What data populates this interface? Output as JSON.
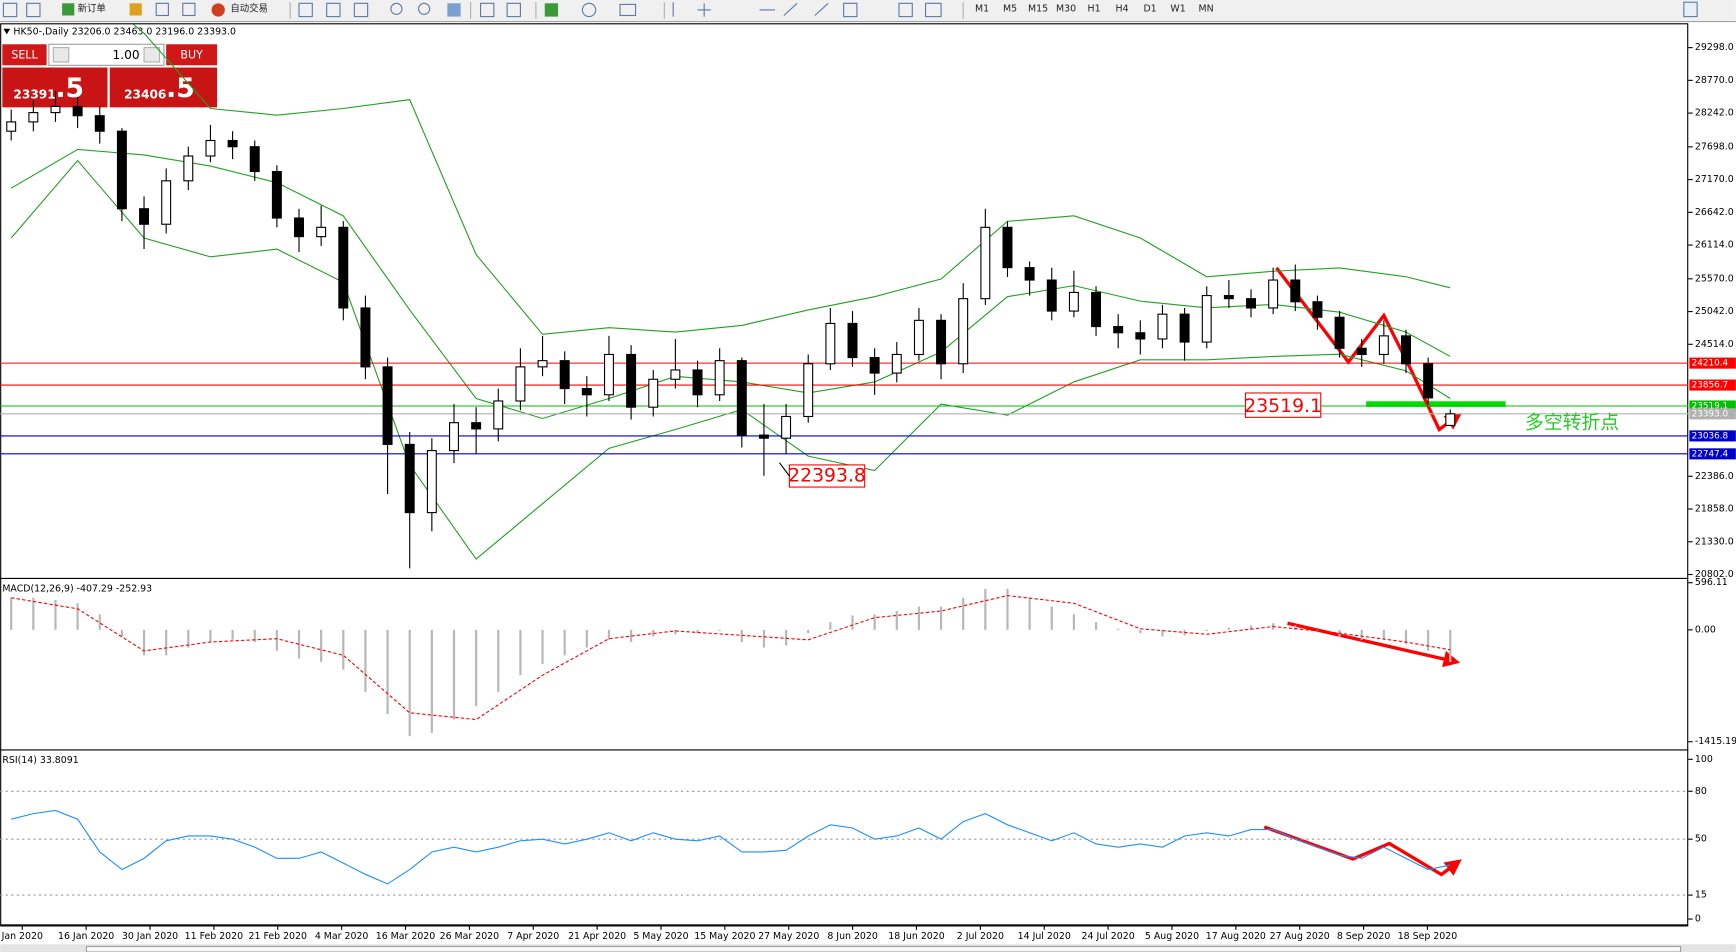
{
  "toolbar": {
    "new_order": "新订单",
    "auto_trading": "自动交易",
    "timeframes": [
      "M1",
      "M5",
      "M15",
      "M30",
      "H1",
      "H4",
      "D1",
      "W1",
      "MN"
    ]
  },
  "trade_panel": {
    "sell": "SELL",
    "buy": "BUY",
    "volume": "1.00",
    "bid_main": "23391",
    "bid_frac": ".5",
    "ask_main": "23406",
    "ask_frac": ".5"
  },
  "chart_data": [
    {
      "type": "candlestick",
      "title": "HK50-,Daily 23206.0 23463.0 23196.0 23393.0",
      "up_color": "#ffffff",
      "down_color": "#000000",
      "open": [
        27950,
        28100,
        28250,
        28350,
        28200,
        27950,
        26700,
        26450,
        27150,
        27550,
        27800,
        27700,
        27300,
        26550,
        26250,
        26400,
        25100,
        24150,
        22900,
        21800,
        22800,
        23250,
        23150,
        23600,
        24150,
        24250,
        23800,
        23700,
        24350,
        23500,
        23950,
        24100,
        23700,
        24250,
        23050,
        23000,
        23350,
        24200,
        24850,
        24300,
        24050,
        24350,
        24900,
        24200,
        25250,
        26400,
        25750,
        25550,
        25050,
        25350,
        24800,
        24700,
        24600,
        25000,
        24550,
        25300,
        25250,
        25100,
        25550,
        25200,
        24950,
        24450,
        24350,
        24650,
        24200,
        23206
      ],
      "high": [
        28300,
        28450,
        28600,
        28500,
        28350,
        28000,
        26900,
        27350,
        27700,
        28050,
        27950,
        27800,
        27400,
        26700,
        26750,
        26500,
        25300,
        24300,
        23100,
        23000,
        23550,
        23500,
        23800,
        24450,
        24650,
        24400,
        24000,
        24650,
        24500,
        24100,
        24600,
        24250,
        24450,
        24300,
        23550,
        23550,
        24350,
        25100,
        25050,
        24450,
        24550,
        25100,
        25000,
        25500,
        26700,
        26500,
        25850,
        25750,
        25700,
        25450,
        25000,
        24900,
        25150,
        25100,
        25450,
        25550,
        25400,
        25750,
        25800,
        25300,
        25050,
        24600,
        24900,
        24750,
        24300,
        23463
      ],
      "low": [
        27800,
        27950,
        28100,
        28000,
        27750,
        26500,
        26050,
        26300,
        27000,
        27450,
        27500,
        27150,
        26400,
        26000,
        26100,
        24900,
        23950,
        22100,
        20900,
        21500,
        22600,
        22750,
        22950,
        23450,
        24000,
        23550,
        23350,
        23600,
        23300,
        23350,
        23800,
        23500,
        23600,
        22850,
        22393.8,
        22750,
        23250,
        24100,
        24150,
        23700,
        23900,
        24250,
        23950,
        24050,
        25150,
        25600,
        25300,
        24900,
        24950,
        24650,
        24450,
        24350,
        24450,
        24250,
        24450,
        25100,
        24950,
        25000,
        25050,
        24750,
        24300,
        24150,
        24200,
        24050,
        23550,
        23196
      ],
      "close": [
        28100,
        28250,
        28350,
        28200,
        27950,
        26700,
        26450,
        27150,
        27550,
        27800,
        27700,
        27300,
        26550,
        26250,
        26400,
        25100,
        24150,
        22900,
        21800,
        22800,
        23250,
        23150,
        23600,
        24150,
        24250,
        23800,
        23700,
        24350,
        23500,
        23950,
        24100,
        23700,
        24250,
        23050,
        23000,
        23350,
        24200,
        24850,
        24300,
        24050,
        24350,
        24900,
        24200,
        25250,
        26400,
        25750,
        25550,
        25050,
        25350,
        24800,
        24700,
        24600,
        25000,
        24550,
        25300,
        25250,
        25100,
        25550,
        25200,
        24950,
        24450,
        24350,
        24650,
        24200,
        23650,
        23393
      ],
      "bands": {
        "color": "#22a022",
        "x": [
          0,
          3,
          6,
          9,
          12,
          15,
          18,
          21,
          24,
          27,
          30,
          33,
          36,
          39,
          42,
          45,
          48,
          51,
          54,
          57,
          60,
          63,
          65
        ],
        "upper": [
          30420,
          30420,
          29530,
          28316,
          28209,
          28316,
          28459,
          25960,
          24675,
          24782,
          24711,
          24818,
          25068,
          25282,
          25567,
          26496,
          26585,
          26228,
          25603,
          25692,
          25746,
          25603,
          25425
        ],
        "middle": [
          27031,
          27656,
          27567,
          27388,
          27120,
          26585,
          25068,
          23640,
          23318,
          23640,
          23997,
          23907,
          23729,
          23907,
          24389,
          25282,
          25460,
          25210,
          25103,
          25157,
          25032,
          24711,
          24318
        ],
        "lower": [
          26228,
          27477,
          26228,
          25924,
          26049,
          25514,
          22569,
          21051,
          21944,
          22836,
          23140,
          23461,
          22711,
          22479,
          23550,
          23372,
          23907,
          24264,
          24264,
          24318,
          24354,
          24086,
          23640
        ]
      },
      "ylim": [
        20766,
        29673
      ],
      "yticks": [
        {
          "value": 29298,
          "label": "29298.0"
        },
        {
          "value": 28770,
          "label": "28770.0"
        },
        {
          "value": 28242,
          "label": "28242.0"
        },
        {
          "value": 27698,
          "label": "27698.0"
        },
        {
          "value": 27170,
          "label": "27170.0"
        },
        {
          "value": 26642,
          "label": "26642.0"
        },
        {
          "value": 26114,
          "label": "26114.0"
        },
        {
          "value": 25570,
          "label": "25570.0"
        },
        {
          "value": 25042,
          "label": "25042.0"
        },
        {
          "value": 24514,
          "label": "24514.0"
        },
        {
          "value": 22386,
          "label": "22386.0"
        },
        {
          "value": 21858,
          "label": "21858.0"
        },
        {
          "value": 21330,
          "label": "21330.0"
        },
        {
          "value": 20802,
          "label": "20802.0"
        }
      ],
      "levels": [
        {
          "value": 24210.4,
          "color": "#ff0000"
        },
        {
          "value": 23856.7,
          "color": "#ff0000"
        },
        {
          "value": 23519.1,
          "color": "#00c000"
        },
        {
          "value": 23393,
          "label": "23393.0",
          "color": "#b0b0b0"
        },
        {
          "value": 23036.8,
          "color": "#0000cc"
        },
        {
          "value": 22747.4,
          "color": "#0000cc"
        }
      ],
      "annotations": [
        {
          "text": "23519.1",
          "color": "#ff0000"
        },
        {
          "text": "22393.8",
          "color": "#ff0000"
        },
        {
          "text": "多空转折点",
          "color": "#22cc22"
        }
      ],
      "x_labels": [
        "Jan 2020",
        "16 Jan 2020",
        "30 Jan 2020",
        "11 Feb 2020",
        "21 Feb 2020",
        "4 Mar 2020",
        "16 Mar 2020",
        "26 Mar 2020",
        "7 Apr 2020",
        "21 Apr 2020",
        "5 May 2020",
        "15 May 2020",
        "27 May 2020",
        "8 Jun 2020",
        "18 Jun 2020",
        "2 Jul 2020",
        "14 Jul 2020",
        "24 Jul 2020",
        "5 Aug 2020",
        "17 Aug 2020",
        "27 Aug 2020",
        "8 Sep 2020",
        "18 Sep 2020"
      ]
    },
    {
      "type": "macd",
      "title": "MACD(12,26,9) -407.29 -252.93",
      "histogram": [
        406,
        406,
        378,
        336,
        196,
        -84,
        -322,
        -322,
        -224,
        -154,
        -126,
        -154,
        -266,
        -364,
        -406,
        -504,
        -785,
        -1065,
        -1345,
        -1303,
        -1135,
        -967,
        -785,
        -574,
        -434,
        -322,
        -224,
        -126,
        -154,
        -84,
        -56,
        -42,
        -14,
        -154,
        -224,
        -196,
        -42,
        98,
        182,
        196,
        238,
        294,
        294,
        406,
        518,
        518,
        406,
        294,
        196,
        98,
        14,
        -42,
        -84,
        -70,
        -14,
        28,
        56,
        84,
        56,
        -14,
        -84,
        -126,
        -126,
        -182,
        -266,
        -407
      ],
      "histogram_color": "#b8b8b8",
      "signal": {
        "color": "#ff0000",
        "x": [
          0,
          3,
          6,
          9,
          12,
          15,
          18,
          21,
          24,
          27,
          30,
          33,
          36,
          39,
          42,
          45,
          48,
          51,
          54,
          57,
          60,
          63,
          65
        ],
        "values": [
          406,
          266,
          -266,
          -154,
          -112,
          -322,
          -1050,
          -1135,
          -574,
          -112,
          -14,
          -70,
          -126,
          154,
          238,
          434,
          336,
          14,
          -56,
          42,
          -42,
          -154,
          -253
        ]
      },
      "ylim": [
        -1499,
        630
      ],
      "yticks": [
        596.11,
        {
          "value": 0,
          "label": "0.00"
        },
        -1415.19
      ]
    },
    {
      "type": "line",
      "title": "RSI(14) 33.8091",
      "color": "#1e90ff",
      "values": [
        62.5,
        66,
        68,
        62.5,
        42,
        31,
        38,
        49,
        52,
        52,
        50,
        45,
        38,
        38,
        42,
        35,
        28,
        22,
        31,
        42,
        45,
        42,
        45,
        49,
        50,
        47,
        50,
        54,
        49,
        54,
        50,
        49,
        52,
        42,
        42,
        43,
        52,
        59,
        57,
        50,
        52,
        57,
        50,
        61,
        66,
        59,
        54,
        49,
        54,
        47,
        45,
        47,
        45,
        52,
        54,
        52,
        56,
        56,
        50,
        45,
        40,
        38,
        45,
        38,
        31,
        33.8
      ],
      "ylim": [
        -4,
        105.5
      ],
      "yticks": [
        100,
        80,
        50,
        15,
        0
      ],
      "levels": [
        80,
        50,
        15
      ]
    }
  ]
}
